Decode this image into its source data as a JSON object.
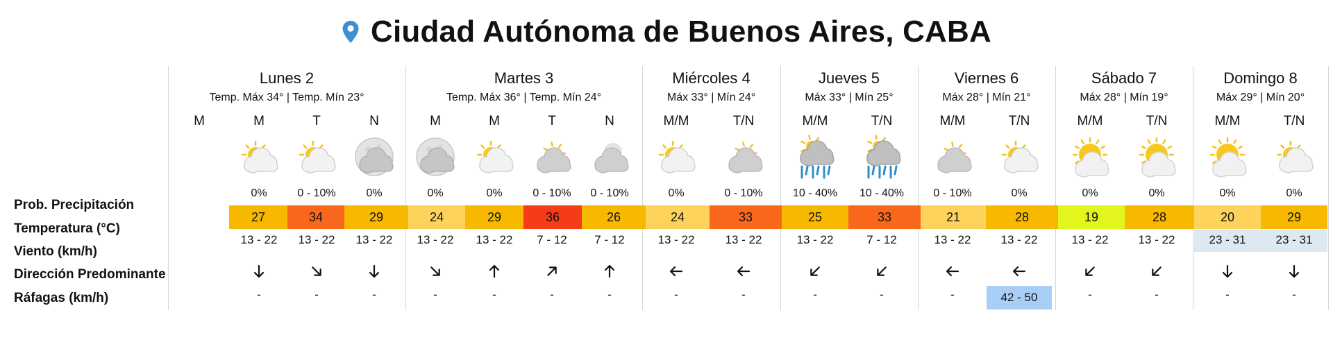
{
  "title": "Ciudad Autónoma de Buenos Aires, CABA",
  "row_labels": {
    "precip": "Prob. Precipitación",
    "temp": "Temperatura (°C)",
    "wind": "Viento (km/h)",
    "direction": "Dirección Predominante",
    "gusts": "Ráfagas (km/h)"
  },
  "days": [
    {
      "name": "Lunes 2",
      "temps": "Temp. Máx 34° | Temp. Mín 23°"
    },
    {
      "name": "Martes 3",
      "temps": "Temp. Máx 36° | Temp. Mín 24°"
    },
    {
      "name": "Miércoles 4",
      "temps": "Máx 33° | Mín 24°"
    },
    {
      "name": "Jueves 5",
      "temps": "Máx 33° | Mín 25°"
    },
    {
      "name": "Viernes 6",
      "temps": "Máx 28° | Mín 21°"
    },
    {
      "name": "Sábado 7",
      "temps": "Máx 28° | Mín 19°"
    },
    {
      "name": "Domingo 8",
      "temps": "Máx 29° | Mín 20°"
    }
  ],
  "orphan_slot_label": "M",
  "slots": [
    {
      "label": "M",
      "icon": "sun-behind-cloud",
      "prob": "0%",
      "temp": "27",
      "temp_color": "#f7b900",
      "wind": "13 - 22",
      "dir": "south-arrow",
      "gust": "-"
    },
    {
      "label": "T",
      "icon": "sun-behind-cloud",
      "prob": "0 - 10%",
      "temp": "34",
      "temp_color": "#f9671c",
      "wind": "13 - 22",
      "dir": "southeast-arrow",
      "gust": "-"
    },
    {
      "label": "N",
      "icon": "moon-behind-cloud",
      "prob": "0%",
      "temp": "29",
      "temp_color": "#f7b900",
      "wind": "13 - 22",
      "dir": "south-arrow",
      "gust": "-"
    },
    {
      "label": "M",
      "icon": "moon-behind-cloud",
      "prob": "0%",
      "temp": "24",
      "temp_color": "#fdd35b",
      "wind": "13 - 22",
      "dir": "southeast-arrow",
      "gust": "-"
    },
    {
      "label": "M",
      "icon": "sun-behind-cloud",
      "prob": "0%",
      "temp": "29",
      "temp_color": "#f7b900",
      "wind": "13 - 22",
      "dir": "north-arrow",
      "gust": "-"
    },
    {
      "label": "T",
      "icon": "sun-behind-gray-cloud",
      "prob": "0 - 10%",
      "temp": "36",
      "temp_color": "#f53b17",
      "wind": "7 - 12",
      "dir": "northeast-arrow",
      "gust": "-"
    },
    {
      "label": "N",
      "icon": "moon-behind-gray-cloud",
      "prob": "0 - 10%",
      "temp": "26",
      "temp_color": "#f7b900",
      "wind": "7 - 12",
      "dir": "north-arrow",
      "gust": "-"
    },
    {
      "label": "M/M",
      "icon": "sun-behind-cloud",
      "prob": "0%",
      "temp": "24",
      "temp_color": "#fdd35b",
      "wind": "13 - 22",
      "dir": "west-arrow",
      "gust": "-"
    },
    {
      "label": "T/N",
      "icon": "sun-behind-gray-cloud",
      "prob": "0 - 10%",
      "temp": "33",
      "temp_color": "#f9671c",
      "wind": "13 - 22",
      "dir": "west-arrow",
      "gust": "-"
    },
    {
      "label": "M/M",
      "icon": "rain-cloud",
      "prob": "10 - 40%",
      "temp": "25",
      "temp_color": "#f7b900",
      "wind": "13 - 22",
      "dir": "southwest-arrow",
      "gust": "-"
    },
    {
      "label": "T/N",
      "icon": "rain-cloud",
      "prob": "10 - 40%",
      "temp": "33",
      "temp_color": "#f9671c",
      "wind": "7 - 12",
      "dir": "southwest-arrow",
      "gust": "-"
    },
    {
      "label": "M/M",
      "icon": "sun-behind-gray-cloud",
      "prob": "0 - 10%",
      "temp": "21",
      "temp_color": "#fdd35b",
      "wind": "13 - 22",
      "dir": "west-arrow",
      "gust": "-"
    },
    {
      "label": "T/N",
      "icon": "sun-behind-cloud",
      "prob": "0%",
      "temp": "28",
      "temp_color": "#f7b900",
      "wind": "13 - 22",
      "dir": "west-arrow",
      "gust": "42 - 50",
      "gust_color": "#a8cef6"
    },
    {
      "label": "M/M",
      "icon": "sun-behind-low-cloud",
      "prob": "0%",
      "temp": "19",
      "temp_color": "#e2f51d",
      "wind": "13 - 22",
      "dir": "southwest-arrow",
      "gust": "-"
    },
    {
      "label": "T/N",
      "icon": "sun-behind-low-cloud",
      "prob": "0%",
      "temp": "28",
      "temp_color": "#f7b900",
      "wind": "13 - 22",
      "dir": "southwest-arrow",
      "gust": "-"
    },
    {
      "label": "M/M",
      "icon": "sun-behind-low-cloud",
      "prob": "0%",
      "temp": "20",
      "temp_color": "#fdd35b",
      "wind": "23 - 31",
      "wind_bg": "#dde8f1",
      "dir": "south-arrow",
      "gust": "-"
    },
    {
      "label": "T/N",
      "icon": "sun-behind-cloud",
      "prob": "0%",
      "temp": "29",
      "temp_color": "#f7b900",
      "wind": "23 - 31",
      "wind_bg": "#dde8f1",
      "dir": "south-arrow",
      "gust": "-"
    }
  ]
}
